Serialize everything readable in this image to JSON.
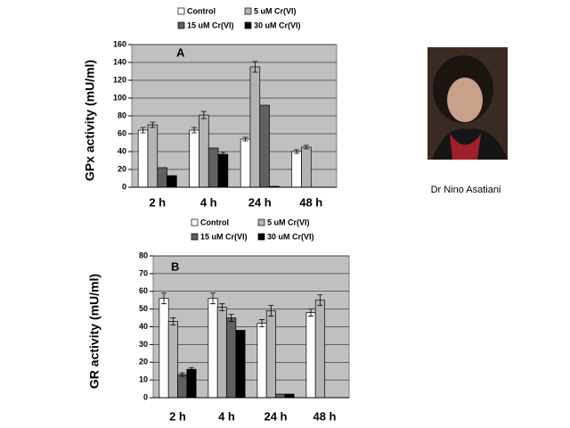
{
  "caption": "Dr Nino Asatiani",
  "chart_data": [
    {
      "type": "bar",
      "annotation": "A",
      "y_label": "GPx activity (mU/ml)",
      "categories": [
        "2 h",
        "4 h",
        "24 h",
        "48 h"
      ],
      "series": [
        {
          "name": "Control",
          "color": "#ffffff",
          "values": [
            64,
            64,
            54,
            40
          ],
          "errors": [
            3,
            3,
            2,
            2
          ]
        },
        {
          "name": "5 uM Cr(VI)",
          "color": "#b4b4b4",
          "values": [
            70,
            81,
            135,
            45
          ],
          "errors": [
            3,
            4,
            6,
            2
          ]
        },
        {
          "name": "15 uM Cr(VI)",
          "color": "#606060",
          "values": [
            22,
            44,
            92,
            null
          ],
          "errors": [
            null,
            null,
            null,
            null
          ]
        },
        {
          "name": "30 uM Cr(VI)",
          "color": "#000000",
          "values": [
            13,
            37,
            1,
            null
          ],
          "errors": [
            null,
            2,
            null,
            null
          ]
        }
      ],
      "ylim": [
        0,
        160
      ],
      "yticks": [
        0,
        20,
        40,
        60,
        80,
        100,
        120,
        140,
        160
      ],
      "grid": true
    },
    {
      "type": "bar",
      "annotation": "B",
      "y_label": "GR activity (mU/ml)",
      "categories": [
        "2 h",
        "4 h",
        "24 h",
        "48 h"
      ],
      "series": [
        {
          "name": "Control",
          "color": "#ffffff",
          "values": [
            56,
            56,
            42,
            48
          ],
          "errors": [
            3,
            3,
            2,
            2
          ]
        },
        {
          "name": "5 uM Cr(VI)",
          "color": "#b4b4b4",
          "values": [
            43,
            51,
            49,
            55
          ],
          "errors": [
            2,
            2,
            3,
            3
          ]
        },
        {
          "name": "15 uM Cr(VI)",
          "color": "#606060",
          "values": [
            13,
            45,
            2,
            null
          ],
          "errors": [
            1,
            2,
            null,
            null
          ]
        },
        {
          "name": "30 uM Cr(VI)",
          "color": "#000000",
          "values": [
            16,
            38,
            2,
            null
          ],
          "errors": [
            1,
            null,
            null,
            null
          ]
        }
      ],
      "ylim": [
        0,
        80
      ],
      "yticks": [
        0,
        10,
        20,
        30,
        40,
        50,
        60,
        70,
        80
      ],
      "grid": true
    }
  ]
}
